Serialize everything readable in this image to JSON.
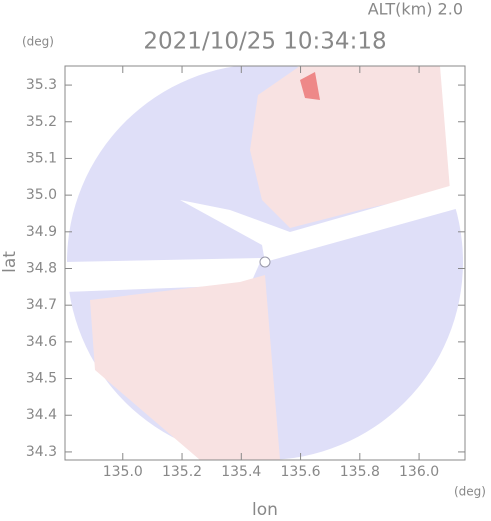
{
  "chart_data": {
    "type": "map",
    "title": "2021/10/25 10:34:18",
    "subtitle": "ALT(km) 2.0",
    "x_label": "lon",
    "y_label": "lat",
    "x_unit": "(deg)",
    "y_unit": "(deg)",
    "xlim": [
      134.805,
      136.155
    ],
    "ylim": [
      34.278,
      35.352
    ],
    "xticks": [
      {
        "value": 135.0,
        "label": "135.0"
      },
      {
        "value": 135.2,
        "label": "135.2"
      },
      {
        "value": 135.4,
        "label": "135.4"
      },
      {
        "value": 135.6,
        "label": "135.6"
      },
      {
        "value": 135.8,
        "label": "135.8"
      },
      {
        "value": 136.0,
        "label": "136.0"
      }
    ],
    "yticks": [
      34.3,
      34.4,
      34.5,
      34.6,
      34.7,
      34.8,
      34.9,
      {
        "value": 35.0,
        "label": "35.0"
      },
      35.1,
      35.2,
      35.3
    ]
  }
}
